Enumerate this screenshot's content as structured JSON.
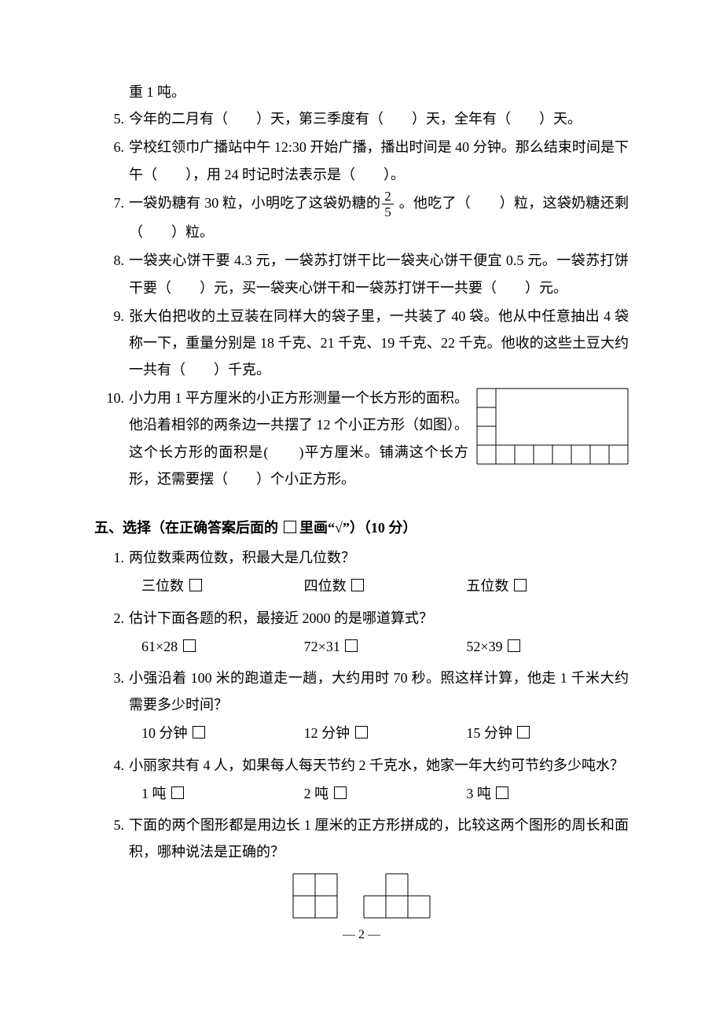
{
  "cont_line": "重 1 吨。",
  "fill": [
    {
      "n": "5.",
      "t": "今年的二月有（　　）天，第三季度有（　　）天，全年有（　　）天。"
    },
    {
      "n": "6.",
      "t": "学校红领巾广播站中午 12:30 开始广播，播出时间是 40 分钟。那么结束时间是下午（　　），用 24 时记时法表示是（　　）。"
    },
    {
      "n": "7.",
      "t_pre": "一袋奶糖有 30 粒，小明吃了这袋奶糖的",
      "frac_n": "2",
      "frac_d": "5",
      "t_post": " 。他吃了（　　）粒，这袋奶糖还剩（　　）粒。"
    },
    {
      "n": "8.",
      "t": "一袋夹心饼干要 4.3 元，一袋苏打饼干比一袋夹心饼干便宜 0.5 元。一袋苏打饼干要（　　）元，买一袋夹心饼干和一袋苏打饼干一共要（　　）元。"
    },
    {
      "n": "9.",
      "t": "张大伯把收的土豆装在同样大的袋子里，一共装了 40 袋。他从中任意抽出 4 袋称一下，重量分别是 18 千克、21 千克、19 千克、22 千克。他收的这些土豆大约一共有（　　）千克。"
    },
    {
      "n": "10.",
      "t": "小力用 1 平方厘米的小正方形测量一个长方形的面积。他沿着相邻的两条边一共摆了 12 个小正方形（如图）。这个长方形的面积是(　　)平方厘米。铺满这个长方形，还需要摆（　　）个小正方形。"
    }
  ],
  "q10_grid": {
    "cols": 8,
    "rows": 4,
    "cell": 24,
    "stroke": "#000000",
    "stroke_w": 1
  },
  "section5_title": "五、选择（在正确答案后面的 □ 里画“√”）（10 分）",
  "choice": [
    {
      "n": "1.",
      "q": "两位数乘两位数，积最大是几位数？",
      "opts": [
        "三位数",
        "四位数",
        "五位数"
      ]
    },
    {
      "n": "2.",
      "q": "估计下面各题的积，最接近 2000 的是哪道算式？",
      "opts": [
        "61×28",
        "72×31",
        "52×39"
      ]
    },
    {
      "n": "3.",
      "q": "小强沿着 100 米的跑道走一趟，大约用时 70 秒。照这样计算，他走 1 千米大约需要多少时间？",
      "opts": [
        "10 分钟",
        "12 分钟",
        "15 分钟"
      ]
    },
    {
      "n": "4.",
      "q": "小丽家共有 4 人，如果每人每天节约 2 千克水，她家一年大约可节约多少吨水？",
      "opts": [
        "1 吨",
        "2 吨",
        "3 吨"
      ]
    },
    {
      "n": "5.",
      "q": "下面的两个图形都是用边长 1 厘米的正方形拼成的，比较这两个图形的周长和面积，哪种说法是正确的？",
      "figs": true
    }
  ],
  "figA": {
    "cell": 28,
    "stroke": "#000000"
  },
  "figB": {
    "cell": 28,
    "stroke": "#000000"
  },
  "page_num": "— 2 —"
}
